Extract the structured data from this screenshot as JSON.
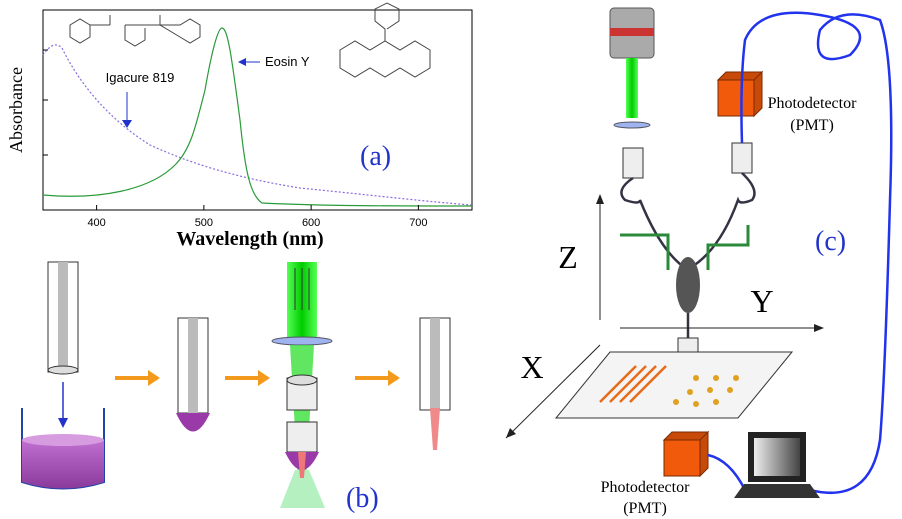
{
  "panel_a": {
    "y_label": "Absorbance",
    "x_label": "Wavelength (nm)",
    "xlim": [
      350,
      750
    ],
    "xticks": [
      400,
      500,
      600,
      700
    ],
    "annotations": [
      "Igacure 819",
      "Eosin Y"
    ],
    "label": "(a)"
  },
  "panel_b": {
    "label": "(b)"
  },
  "panel_c": {
    "label": "(c)",
    "axes": [
      "Z",
      "Y",
      "X"
    ],
    "detectors": [
      {
        "name": "Photodetector",
        "sub": "(PMT)"
      },
      {
        "name": "Photodetector",
        "sub": "(PMT)"
      }
    ]
  }
}
